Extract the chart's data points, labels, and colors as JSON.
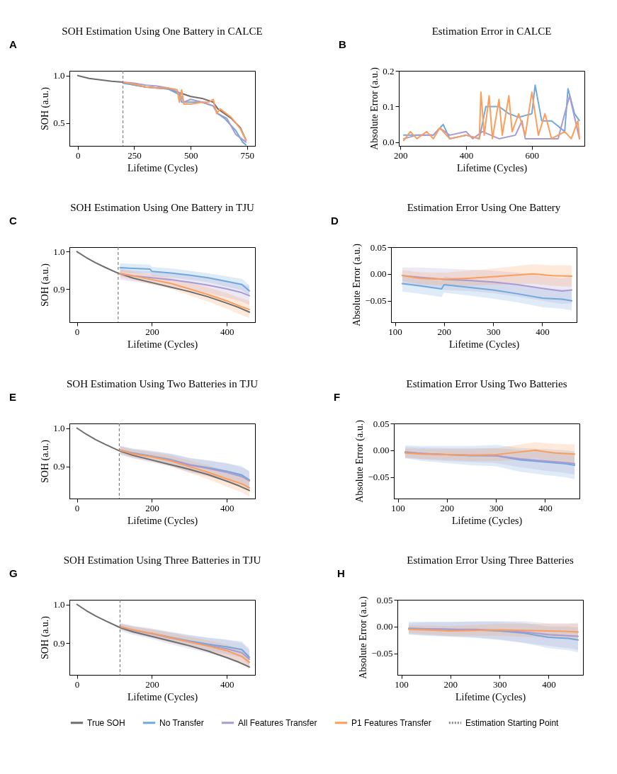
{
  "chart_data": [
    {
      "type": "line",
      "title": "SOH Estimation Using One Battery in CALCE",
      "xlabel": "Lifetime (Cycles)",
      "ylabel": "SOH (a.u.)",
      "annotations": [
        "A"
      ],
      "xlim": [
        -37,
        785
      ],
      "ylim": [
        0.26,
        1.05
      ],
      "xticks": [
        0,
        250,
        500,
        750
      ],
      "yticks": [
        0.5,
        {
          "value": 1,
          "label": "1.0"
        }
      ],
      "legend": "bottom",
      "ref_lines": [
        {
          "axis": "x",
          "value": 200,
          "label": "Estimation Starting Point",
          "color": "#808080",
          "line_style": "dashed"
        }
      ],
      "series": [
        {
          "name": "True SOH",
          "color": "#6e6e6e",
          "x": [
            0,
            50,
            100,
            150,
            200,
            250,
            300,
            400,
            450,
            500,
            550,
            600,
            620,
            680,
            720,
            745
          ],
          "values": [
            1.0,
            0.97,
            0.955,
            0.94,
            0.93,
            0.9,
            0.88,
            0.86,
            0.82,
            0.78,
            0.76,
            0.72,
            0.65,
            0.55,
            0.45,
            0.32
          ]
        },
        {
          "name": "No Transfer",
          "color": "#6fa8dc",
          "x": [
            200,
            250,
            300,
            350,
            400,
            450,
            460,
            500,
            550,
            600,
            620,
            650,
            700,
            730,
            745
          ],
          "values": [
            0.92,
            0.9,
            0.88,
            0.87,
            0.86,
            0.8,
            0.72,
            0.72,
            0.72,
            0.68,
            0.6,
            0.55,
            0.42,
            0.3,
            0.27
          ]
        },
        {
          "name": "All Features Transfer",
          "color": "#a99ad3",
          "x": [
            200,
            250,
            300,
            350,
            400,
            450,
            470,
            500,
            550,
            600,
            620,
            660,
            700,
            745
          ],
          "values": [
            0.93,
            0.92,
            0.9,
            0.89,
            0.87,
            0.82,
            0.72,
            0.75,
            0.72,
            0.68,
            0.6,
            0.55,
            0.38,
            0.3
          ]
        },
        {
          "name": "P1 Features Transfer",
          "color": "#fc9d5c",
          "x": [
            200,
            250,
            300,
            350,
            400,
            440,
            450,
            460,
            470,
            500,
            550,
            580,
            600,
            615,
            630,
            680,
            720,
            745
          ],
          "values": [
            0.93,
            0.91,
            0.88,
            0.87,
            0.87,
            0.85,
            0.72,
            0.85,
            0.7,
            0.7,
            0.72,
            0.72,
            0.75,
            0.6,
            0.65,
            0.56,
            0.44,
            0.32
          ]
        }
      ]
    },
    {
      "type": "line",
      "title": "Estimation Error in CALCE",
      "xlabel": "Lifetime (Cycles)",
      "ylabel": "Absolute Error (a.u.)",
      "annotations": [
        "B"
      ],
      "xlim": [
        195,
        760
      ],
      "ylim": [
        -0.01,
        0.2
      ],
      "xticks": [
        200,
        400,
        600
      ],
      "yticks": [
        {
          "value": 0,
          "label": "0.0"
        },
        0.1,
        0.2
      ],
      "series": [
        {
          "name": "No Transfer",
          "color": "#6fa8dc",
          "line_style": "dashed",
          "x": [
            210,
            250,
            300,
            330,
            350,
            400,
            440,
            460,
            500,
            530,
            560,
            600,
            610,
            630,
            660,
            700,
            710,
            730,
            745
          ],
          "values": [
            0.02,
            0.02,
            0.02,
            0.05,
            0.01,
            0.02,
            0.01,
            0.1,
            0.1,
            0.08,
            0.07,
            0.08,
            0.16,
            0.06,
            0.06,
            0.03,
            0.15,
            0.08,
            0.06
          ]
        },
        {
          "name": "All Features Transfer",
          "color": "#a99ad3",
          "x": [
            210,
            250,
            300,
            320,
            350,
            400,
            420,
            450,
            500,
            550,
            570,
            580,
            620,
            680,
            700,
            715,
            735,
            745
          ],
          "values": [
            0.01,
            0.02,
            0.02,
            0.04,
            0.02,
            0.03,
            0.01,
            0.03,
            0.01,
            0.02,
            0.06,
            0.01,
            0.01,
            0.01,
            0.08,
            0.13,
            0.05,
            0.01
          ]
        },
        {
          "name": "P1 Features Transfer",
          "color": "#fc9d5c",
          "x": [
            210,
            230,
            250,
            280,
            300,
            320,
            350,
            400,
            440,
            445,
            455,
            470,
            480,
            500,
            510,
            530,
            540,
            560,
            580,
            600,
            620,
            640,
            660,
            700,
            720,
            740,
            745
          ],
          "values": [
            0.005,
            0.03,
            0.01,
            0.03,
            0.01,
            0.04,
            0.01,
            0.02,
            0.01,
            0.14,
            0.02,
            0.13,
            0.01,
            0.12,
            0.02,
            0.13,
            0.03,
            0.08,
            0.02,
            0.14,
            0.02,
            0.08,
            0.01,
            0.03,
            0.01,
            0.06,
            0.01
          ]
        }
      ]
    },
    {
      "type": "line",
      "title": "SOH Estimation Using One Battery in TJU",
      "xlabel": "Lifetime (Cycles)",
      "ylabel": "SOH (a.u.)",
      "annotations": [
        "C"
      ],
      "xlim": [
        -20,
        475
      ],
      "ylim": [
        0.811,
        1.012
      ],
      "xticks": [
        0,
        200,
        400
      ],
      "yticks": [
        0.9,
        {
          "value": 1,
          "label": "1.0"
        }
      ],
      "ref_lines": [
        {
          "axis": "x",
          "value": 110,
          "color": "#808080",
          "line_style": "dashed"
        }
      ],
      "series": [
        {
          "name": "True SOH",
          "color": "#6e6e6e",
          "x": [
            0,
            25,
            50,
            75,
            110,
            150,
            200,
            250,
            300,
            350,
            400,
            430,
            460
          ],
          "values": [
            1.0,
            0.984,
            0.97,
            0.958,
            0.942,
            0.929,
            0.917,
            0.905,
            0.893,
            0.879,
            0.862,
            0.851,
            0.838
          ]
        },
        {
          "name": "No Transfer",
          "color": "#6fa8dc",
          "x": [
            115,
            150,
            195,
            200,
            250,
            300,
            350,
            400,
            440,
            460
          ],
          "values": [
            0.957,
            0.955,
            0.953,
            0.947,
            0.943,
            0.937,
            0.93,
            0.92,
            0.912,
            0.895
          ],
          "lower": [
            0.945,
            0.943,
            0.941,
            0.935,
            0.931,
            0.925,
            0.918,
            0.906,
            0.897,
            0.88
          ],
          "upper": [
            0.969,
            0.967,
            0.965,
            0.959,
            0.955,
            0.949,
            0.942,
            0.934,
            0.927,
            0.91
          ]
        },
        {
          "name": "All Features Transfer",
          "color": "#a99ad3",
          "x": [
            115,
            150,
            200,
            250,
            300,
            350,
            400,
            440,
            460
          ],
          "values": [
            0.94,
            0.935,
            0.93,
            0.925,
            0.918,
            0.91,
            0.9,
            0.89,
            0.882
          ],
          "lower": [
            0.925,
            0.92,
            0.913,
            0.906,
            0.898,
            0.889,
            0.877,
            0.866,
            0.857
          ],
          "upper": [
            0.955,
            0.95,
            0.947,
            0.944,
            0.938,
            0.931,
            0.923,
            0.914,
            0.907
          ]
        },
        {
          "name": "P1 Features Transfer",
          "color": "#fc9d5c",
          "x": [
            115,
            150,
            200,
            250,
            300,
            350,
            400,
            440,
            460
          ],
          "values": [
            0.942,
            0.935,
            0.925,
            0.915,
            0.9,
            0.885,
            0.868,
            0.852,
            0.845
          ],
          "lower": [
            0.932,
            0.924,
            0.912,
            0.9,
            0.883,
            0.866,
            0.847,
            0.83,
            0.822
          ],
          "upper": [
            0.952,
            0.946,
            0.938,
            0.93,
            0.917,
            0.904,
            0.889,
            0.874,
            0.868
          ]
        }
      ]
    },
    {
      "type": "line",
      "title": "Estimation Error Using One Battery",
      "xlabel": "Lifetime (Cycles)",
      "ylabel": "Absolute Error (a.u.)",
      "annotations": [
        "D"
      ],
      "xlim": [
        92,
        470
      ],
      "ylim": [
        -0.09,
        0.05
      ],
      "xticks": [
        100,
        200,
        300,
        400
      ],
      "yticks": [
        {
          "value": -0.05,
          "label": "−0.05"
        },
        {
          "value": 0,
          "label": "0.00"
        },
        0.05
      ],
      "series": [
        {
          "name": "No Transfer",
          "color": "#6fa8dc",
          "x": [
            115,
            150,
            195,
            200,
            250,
            300,
            350,
            400,
            440,
            460
          ],
          "values": [
            -0.018,
            -0.022,
            -0.028,
            -0.02,
            -0.025,
            -0.03,
            -0.037,
            -0.045,
            -0.047,
            -0.05
          ],
          "lower": [
            -0.033,
            -0.037,
            -0.043,
            -0.035,
            -0.04,
            -0.046,
            -0.053,
            -0.062,
            -0.065,
            -0.068
          ],
          "upper": [
            -0.003,
            -0.007,
            -0.013,
            -0.005,
            -0.01,
            -0.014,
            -0.021,
            -0.028,
            -0.029,
            -0.032
          ]
        },
        {
          "name": "All Features Transfer",
          "color": "#a99ad3",
          "x": [
            115,
            150,
            200,
            250,
            300,
            350,
            400,
            440,
            460
          ],
          "values": [
            -0.003,
            -0.006,
            -0.01,
            -0.012,
            -0.015,
            -0.02,
            -0.027,
            -0.032,
            -0.03
          ],
          "lower": [
            -0.018,
            -0.024,
            -0.03,
            -0.032,
            -0.036,
            -0.042,
            -0.05,
            -0.056,
            -0.055
          ],
          "upper": [
            0.012,
            0.012,
            0.01,
            0.008,
            0.006,
            0.002,
            -0.004,
            -0.008,
            -0.005
          ]
        },
        {
          "name": "P1 Features Transfer",
          "color": "#fc9d5c",
          "x": [
            115,
            150,
            200,
            250,
            300,
            350,
            380,
            420,
            460
          ],
          "values": [
            -0.003,
            -0.008,
            -0.01,
            -0.008,
            -0.005,
            -0.002,
            0.0,
            -0.003,
            -0.004
          ],
          "lower": [
            -0.013,
            -0.019,
            -0.022,
            -0.022,
            -0.02,
            -0.019,
            -0.018,
            -0.022,
            -0.024
          ],
          "upper": [
            0.007,
            0.003,
            0.002,
            0.006,
            0.01,
            0.015,
            0.018,
            0.016,
            0.016
          ]
        }
      ]
    },
    {
      "type": "line",
      "title": "SOH Estimation Using Two Batteries in TJU",
      "xlabel": "Lifetime (Cycles)",
      "ylabel": "SOH (a.u.)",
      "annotations": [
        "E"
      ],
      "xlim": [
        -20,
        475
      ],
      "ylim": [
        0.817,
        1.012
      ],
      "xticks": [
        0,
        200,
        400
      ],
      "yticks": [
        0.9,
        {
          "value": 1,
          "label": "1.0"
        }
      ],
      "ref_lines": [
        {
          "axis": "x",
          "value": 113,
          "color": "#808080",
          "line_style": "dashed"
        }
      ],
      "series": [
        {
          "name": "True SOH",
          "color": "#6e6e6e",
          "x": [
            0,
            25,
            50,
            75,
            113,
            150,
            200,
            250,
            300,
            350,
            400,
            430,
            460
          ],
          "values": [
            1.0,
            0.984,
            0.97,
            0.958,
            0.941,
            0.929,
            0.917,
            0.905,
            0.893,
            0.879,
            0.862,
            0.851,
            0.838
          ]
        },
        {
          "name": "No Transfer",
          "color": "#6fa8dc",
          "x": [
            115,
            150,
            200,
            250,
            300,
            350,
            400,
            440,
            460
          ],
          "values": [
            0.943,
            0.935,
            0.927,
            0.918,
            0.905,
            0.897,
            0.888,
            0.878,
            0.865
          ],
          "lower": [
            0.933,
            0.924,
            0.914,
            0.903,
            0.888,
            0.878,
            0.867,
            0.855,
            0.842
          ],
          "upper": [
            0.953,
            0.946,
            0.94,
            0.933,
            0.922,
            0.916,
            0.909,
            0.901,
            0.888
          ]
        },
        {
          "name": "All Features Transfer",
          "color": "#a99ad3",
          "x": [
            115,
            150,
            200,
            250,
            300,
            350,
            400,
            440,
            460
          ],
          "values": [
            0.942,
            0.934,
            0.926,
            0.917,
            0.904,
            0.895,
            0.885,
            0.874,
            0.863
          ],
          "lower": [
            0.93,
            0.921,
            0.911,
            0.9,
            0.885,
            0.874,
            0.862,
            0.85,
            0.838
          ],
          "upper": [
            0.954,
            0.947,
            0.941,
            0.934,
            0.923,
            0.916,
            0.908,
            0.898,
            0.888
          ]
        },
        {
          "name": "P1 Features Transfer",
          "color": "#fc9d5c",
          "x": [
            115,
            150,
            200,
            250,
            300,
            350,
            400,
            440,
            460
          ],
          "values": [
            0.943,
            0.933,
            0.925,
            0.915,
            0.9,
            0.885,
            0.868,
            0.855,
            0.845
          ],
          "lower": [
            0.934,
            0.923,
            0.913,
            0.901,
            0.884,
            0.867,
            0.848,
            0.833,
            0.822
          ],
          "upper": [
            0.952,
            0.943,
            0.937,
            0.929,
            0.916,
            0.903,
            0.888,
            0.877,
            0.868
          ]
        }
      ]
    },
    {
      "type": "line",
      "title": "Estimation Error Using Two Batteries",
      "xlabel": "Lifetime (Cycles)",
      "ylabel": "Absolute Error (a.u.)",
      "annotations": [
        "F"
      ],
      "xlim": [
        92,
        470
      ],
      "ylim": [
        -0.09,
        0.05
      ],
      "xticks": [
        100,
        200,
        300,
        400
      ],
      "yticks": [
        {
          "value": -0.05,
          "label": "−0.05"
        },
        {
          "value": 0,
          "label": "0.00"
        },
        0.05
      ],
      "series": [
        {
          "name": "No Transfer",
          "color": "#6fa8dc",
          "x": [
            115,
            150,
            200,
            250,
            300,
            350,
            400,
            440,
            460
          ],
          "values": [
            -0.003,
            -0.006,
            -0.008,
            -0.01,
            -0.01,
            -0.018,
            -0.022,
            -0.025,
            -0.028
          ],
          "lower": [
            -0.015,
            -0.02,
            -0.024,
            -0.028,
            -0.03,
            -0.04,
            -0.046,
            -0.05,
            -0.054
          ],
          "upper": [
            0.009,
            0.008,
            0.008,
            0.008,
            0.01,
            0.004,
            0.002,
            0.0,
            -0.002
          ]
        },
        {
          "name": "All Features Transfer",
          "color": "#a99ad3",
          "x": [
            115,
            150,
            200,
            250,
            300,
            350,
            400,
            440,
            460
          ],
          "values": [
            -0.004,
            -0.006,
            -0.008,
            -0.009,
            -0.01,
            -0.016,
            -0.02,
            -0.023,
            -0.025
          ],
          "lower": [
            -0.014,
            -0.017,
            -0.02,
            -0.022,
            -0.024,
            -0.032,
            -0.038,
            -0.042,
            -0.045
          ],
          "upper": [
            0.006,
            0.005,
            0.004,
            0.004,
            0.004,
            0.0,
            -0.002,
            -0.004,
            -0.005
          ]
        },
        {
          "name": "P1 Features Transfer",
          "color": "#fc9d5c",
          "x": [
            115,
            150,
            200,
            250,
            300,
            350,
            380,
            420,
            460
          ],
          "values": [
            -0.005,
            -0.007,
            -0.008,
            -0.009,
            -0.008,
            -0.003,
            0.0,
            -0.005,
            -0.007
          ],
          "lower": [
            -0.013,
            -0.016,
            -0.018,
            -0.02,
            -0.02,
            -0.017,
            -0.015,
            -0.022,
            -0.025
          ],
          "upper": [
            0.003,
            0.002,
            0.002,
            0.002,
            0.004,
            0.011,
            0.015,
            0.012,
            0.011
          ]
        }
      ]
    },
    {
      "type": "line",
      "title": "SOH Estimation Using Three Batteries in TJU",
      "xlabel": "Lifetime (Cycles)",
      "ylabel": "SOH (a.u.)",
      "annotations": [
        "G"
      ],
      "xlim": [
        -20,
        475
      ],
      "ylim": [
        0.8175,
        1.012
      ],
      "xticks": [
        0,
        200,
        400
      ],
      "yticks": [
        0.9,
        {
          "value": 1,
          "label": "1.0"
        }
      ],
      "ref_lines": [
        {
          "axis": "x",
          "value": 115,
          "color": "#808080",
          "line_style": "dashed"
        }
      ],
      "series": [
        {
          "name": "True SOH",
          "color": "#6e6e6e",
          "x": [
            0,
            25,
            50,
            75,
            115,
            150,
            200,
            250,
            300,
            350,
            400,
            430,
            460
          ],
          "values": [
            1.0,
            0.984,
            0.97,
            0.958,
            0.94,
            0.929,
            0.917,
            0.905,
            0.893,
            0.879,
            0.862,
            0.851,
            0.838
          ]
        },
        {
          "name": "No Transfer",
          "color": "#6fa8dc",
          "x": [
            115,
            150,
            200,
            250,
            300,
            350,
            400,
            440,
            460
          ],
          "values": [
            null,
            null,
            0.925,
            0.915,
            0.905,
            0.897,
            0.89,
            0.883,
            0.863
          ],
          "lower": [
            0.935,
            0.925,
            0.914,
            0.902,
            0.89,
            0.88,
            0.871,
            0.862,
            0.842
          ],
          "upper": [
            0.951,
            0.943,
            0.936,
            0.928,
            0.92,
            0.914,
            0.909,
            0.904,
            0.884
          ]
        },
        {
          "name": "All Features Transfer",
          "color": "#a99ad3",
          "x": [
            115,
            150,
            200,
            250,
            300,
            350,
            400,
            440,
            460
          ],
          "values": [
            0.942,
            0.933,
            0.924,
            0.913,
            0.903,
            0.894,
            0.885,
            0.875,
            0.858
          ],
          "lower": [
            0.932,
            0.921,
            0.91,
            0.897,
            0.885,
            0.874,
            0.862,
            0.85,
            0.834
          ],
          "upper": [
            0.952,
            0.945,
            0.938,
            0.929,
            0.921,
            0.914,
            0.908,
            0.9,
            0.882
          ]
        },
        {
          "name": "P1 Features Transfer",
          "color": "#fc9d5c",
          "x": [
            115,
            150,
            200,
            250,
            300,
            350,
            400,
            440,
            460
          ],
          "values": [
            0.943,
            0.934,
            0.925,
            0.914,
            0.903,
            0.892,
            0.88,
            0.865,
            0.85
          ],
          "lower": [
            0.936,
            0.926,
            0.915,
            0.902,
            0.89,
            0.877,
            0.864,
            0.847,
            0.831
          ],
          "upper": [
            0.95,
            0.942,
            0.935,
            0.926,
            0.916,
            0.907,
            0.896,
            0.883,
            0.869
          ]
        }
      ]
    },
    {
      "type": "line",
      "title": "Estimation Error Using Three Batteries",
      "xlabel": "Lifetime (Cycles)",
      "ylabel": "Absolute Error (a.u.)",
      "annotations": [
        "H"
      ],
      "xlim": [
        92,
        470
      ],
      "ylim": [
        -0.09,
        0.05
      ],
      "xticks": [
        100,
        200,
        300,
        400
      ],
      "yticks": [
        {
          "value": -0.05,
          "label": "−0.05"
        },
        {
          "value": 0,
          "label": "0.00"
        },
        0.05
      ],
      "series": [
        {
          "name": "No Transfer",
          "color": "#6fa8dc",
          "x": [
            115,
            150,
            200,
            250,
            300,
            350,
            400,
            440,
            460
          ],
          "values": [
            -0.003,
            -0.004,
            -0.005,
            -0.006,
            -0.008,
            -0.012,
            -0.02,
            -0.022,
            -0.025
          ],
          "lower": [
            -0.015,
            -0.017,
            -0.019,
            -0.021,
            -0.025,
            -0.031,
            -0.04,
            -0.044,
            -0.048
          ],
          "upper": [
            0.009,
            0.009,
            0.009,
            0.009,
            0.009,
            0.007,
            0.0,
            0.0,
            -0.002
          ]
        },
        {
          "name": "All Features Transfer",
          "color": "#a99ad3",
          "x": [
            115,
            150,
            200,
            250,
            300,
            350,
            400,
            440,
            460
          ],
          "values": [
            -0.004,
            -0.004,
            -0.005,
            -0.005,
            -0.007,
            -0.01,
            -0.015,
            -0.017,
            -0.018
          ],
          "lower": [
            -0.014,
            -0.016,
            -0.018,
            -0.02,
            -0.024,
            -0.03,
            -0.036,
            -0.04,
            -0.043
          ],
          "upper": [
            0.006,
            0.008,
            0.008,
            0.01,
            0.01,
            0.01,
            0.006,
            0.006,
            0.007
          ]
        },
        {
          "name": "P1 Features Transfer",
          "color": "#fc9d5c",
          "x": [
            115,
            150,
            200,
            250,
            300,
            350,
            400,
            440,
            460
          ],
          "values": [
            -0.005,
            -0.006,
            -0.008,
            -0.007,
            -0.006,
            -0.007,
            -0.008,
            -0.009,
            -0.01
          ],
          "lower": [
            -0.012,
            -0.014,
            -0.017,
            -0.017,
            -0.017,
            -0.019,
            -0.021,
            -0.023,
            -0.025
          ],
          "upper": [
            0.002,
            0.002,
            0.001,
            0.003,
            0.005,
            0.005,
            0.005,
            0.005,
            0.005
          ]
        }
      ]
    }
  ]
}
